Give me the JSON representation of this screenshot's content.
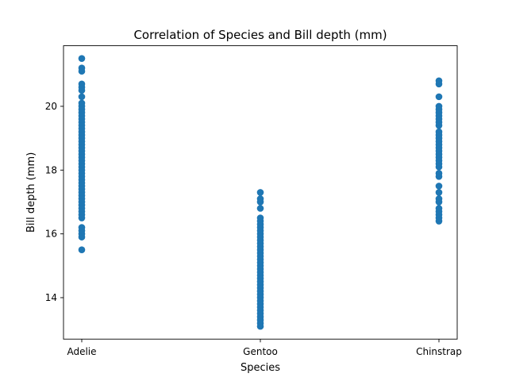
{
  "chart_data": {
    "type": "scatter",
    "title": "Correlation of Species and Bill depth (mm)",
    "xlabel": "Species",
    "ylabel": "Bill depth (mm)",
    "categories": [
      "Adelie",
      "Gentoo",
      "Chinstrap"
    ],
    "yticks": [
      14,
      16,
      18,
      20
    ],
    "ylim": [
      12.7,
      21.9
    ],
    "grid": false,
    "legend": "none",
    "marker_color": "#1f77b4",
    "series": [
      {
        "category": "Adelie",
        "values": [
          15.5,
          15.9,
          16.0,
          16.1,
          16.2,
          16.5,
          16.6,
          16.7,
          16.8,
          16.9,
          17.0,
          17.1,
          17.2,
          17.3,
          17.4,
          17.5,
          17.6,
          17.7,
          17.8,
          17.9,
          18.0,
          18.1,
          18.2,
          18.3,
          18.4,
          18.5,
          18.6,
          18.7,
          18.8,
          18.9,
          19.0,
          19.1,
          19.2,
          19.3,
          19.4,
          19.5,
          19.6,
          19.7,
          19.8,
          19.9,
          20.0,
          20.1,
          20.3,
          20.5,
          20.6,
          20.7,
          21.1,
          21.2,
          21.5
        ]
      },
      {
        "category": "Gentoo",
        "values": [
          13.1,
          13.2,
          13.3,
          13.4,
          13.5,
          13.6,
          13.7,
          13.8,
          13.9,
          14.0,
          14.1,
          14.2,
          14.3,
          14.4,
          14.5,
          14.6,
          14.7,
          14.8,
          14.9,
          15.0,
          15.1,
          15.2,
          15.3,
          15.4,
          15.5,
          15.6,
          15.7,
          15.8,
          15.9,
          16.0,
          16.1,
          16.2,
          16.3,
          16.4,
          16.5,
          16.8,
          17.0,
          17.1,
          17.3
        ]
      },
      {
        "category": "Chinstrap",
        "values": [
          16.4,
          16.5,
          16.6,
          16.7,
          16.8,
          17.0,
          17.1,
          17.3,
          17.5,
          17.8,
          17.9,
          18.1,
          18.2,
          18.3,
          18.4,
          18.5,
          18.6,
          18.7,
          18.8,
          18.9,
          19.0,
          19.1,
          19.2,
          19.4,
          19.5,
          19.6,
          19.7,
          19.8,
          19.9,
          20.0,
          20.3,
          20.7,
          20.8
        ]
      }
    ]
  }
}
